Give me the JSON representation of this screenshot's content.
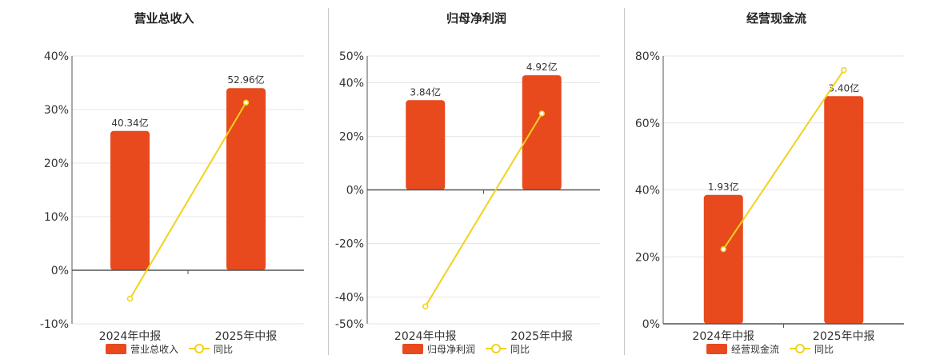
{
  "colors": {
    "bar": "#e8491d",
    "line": "#f2d21b",
    "marker_fill": "#ffffff",
    "grid": "#e6e6e6",
    "axis": "#555555",
    "text": "#333333"
  },
  "legend": {
    "line_label": "同比"
  },
  "chart_data": [
    {
      "type": "bar",
      "title": "营业总收入",
      "categories": [
        "2024年中报",
        "2025年中报"
      ],
      "series": [
        {
          "name": "营业总收入",
          "type": "bar",
          "values": [
            26,
            34
          ],
          "labels": [
            "40.34亿",
            "52.96亿"
          ]
        },
        {
          "name": "同比",
          "type": "line",
          "values": [
            -5.3,
            31.3
          ]
        }
      ],
      "ylim": [
        -10,
        40
      ],
      "yticks": [
        -10,
        0,
        10,
        20,
        30,
        40
      ],
      "ytick_labels": [
        "-10%",
        "0%",
        "10%",
        "20%",
        "30%",
        "40%"
      ],
      "grid": true,
      "legend_position": "bottom"
    },
    {
      "type": "bar",
      "title": "归母净利润",
      "categories": [
        "2024年中报",
        "2025年中报"
      ],
      "series": [
        {
          "name": "归母净利润",
          "type": "bar",
          "values": [
            33.5,
            42.8
          ],
          "labels": [
            "3.84亿",
            "4.92亿"
          ]
        },
        {
          "name": "同比",
          "type": "line",
          "values": [
            -43.5,
            28.5
          ]
        }
      ],
      "ylim": [
        -50,
        50
      ],
      "yticks": [
        -50,
        -40,
        -20,
        0,
        20,
        40,
        50
      ],
      "ytick_labels": [
        "-50%",
        "-40%",
        "-20%",
        "0%",
        "20%",
        "40%",
        "50%"
      ],
      "grid": true,
      "legend_position": "bottom"
    },
    {
      "type": "bar",
      "title": "经营现金流",
      "categories": [
        "2024年中报",
        "2025年中报"
      ],
      "series": [
        {
          "name": "经营现金流",
          "type": "bar",
          "values": [
            38.5,
            68
          ],
          "labels": [
            "1.93亿",
            "3.40亿"
          ]
        },
        {
          "name": "同比",
          "type": "line",
          "values": [
            22.3,
            75.8
          ]
        }
      ],
      "ylim": [
        0,
        80
      ],
      "yticks": [
        0,
        20,
        40,
        60,
        80
      ],
      "ytick_labels": [
        "0%",
        "20%",
        "40%",
        "60%",
        "80%"
      ],
      "grid": true,
      "legend_position": "bottom"
    }
  ]
}
